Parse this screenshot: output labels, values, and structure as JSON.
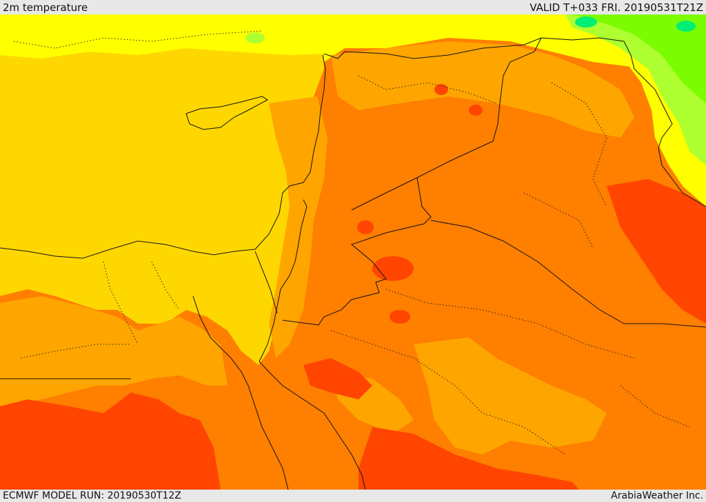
{
  "header": {
    "title": "2m temperature",
    "valid": "VALID T+033 FRI. 20190531T21Z"
  },
  "footer": {
    "model_run": "ECMWF MODEL RUN: 20190530T12Z",
    "credit": "ArabiaWeather Inc."
  },
  "colors": {
    "very_hot": "#ff4500",
    "hot": "#ff7f00",
    "warm": "#ffa500",
    "mild_warm": "#ffd700",
    "mild": "#ffff00",
    "cool": "#adff2f",
    "cooler": "#7cfc00",
    "coolest": "#00ee76"
  }
}
